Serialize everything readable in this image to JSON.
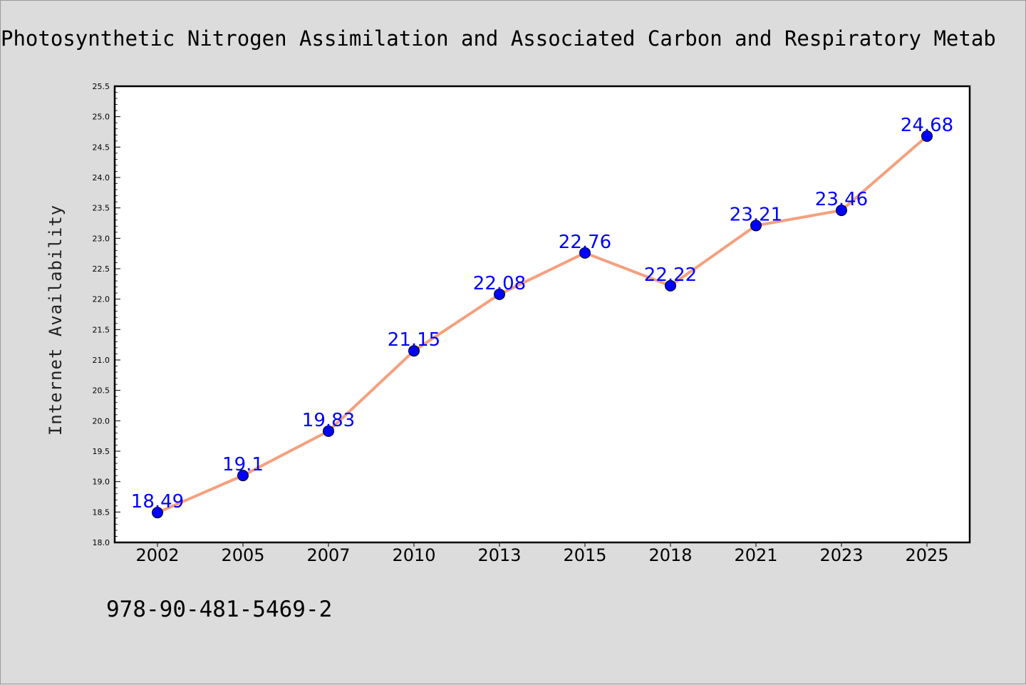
{
  "chart_data": {
    "type": "line",
    "title": "Photosynthetic Nitrogen Assimilation and Associated Carbon and Respiratory Metab",
    "ylabel": "Internet Availability",
    "xlabel": "",
    "categories": [
      "2002",
      "2005",
      "2007",
      "2010",
      "2013",
      "2015",
      "2018",
      "2021",
      "2023",
      "2025"
    ],
    "series": [
      {
        "values": [
          18.49,
          19.1,
          19.83,
          21.15,
          22.08,
          22.76,
          22.22,
          23.21,
          23.46,
          24.68
        ],
        "value_labels": [
          "18.49",
          "19.1",
          "19.83",
          "21.15",
          "22.08",
          "22.76",
          "22.22",
          "23.21",
          "23.46",
          "24.68"
        ],
        "line_color": "#f4a07e",
        "marker_color": "#0000ff"
      }
    ],
    "ylim": [
      18.0,
      25.5
    ],
    "yticks": [
      "18.0",
      "18.5",
      "19.0",
      "19.5",
      "20.0",
      "20.5",
      "21.0",
      "21.5",
      "22.0",
      "22.5",
      "23.0",
      "23.5",
      "24.0",
      "24.5",
      "25.0",
      "25.5"
    ],
    "grid": false,
    "legend": "none"
  },
  "footnote": "978-90-481-5469-2"
}
